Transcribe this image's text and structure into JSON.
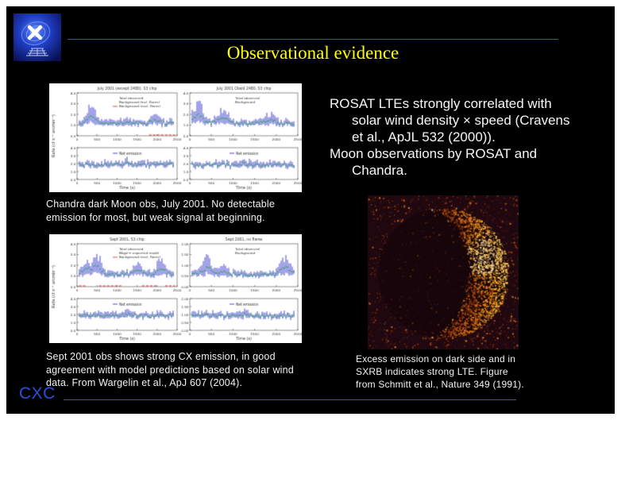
{
  "header": {
    "title": "Observational evidence"
  },
  "footer": {
    "label": "CXC"
  },
  "colors": {
    "title_yellow": "#ffff00",
    "footer_blue": "#2b50dc",
    "rule_blue": "#3a5a8c",
    "slide_background": "#000000",
    "plot_blue": "#1616c8",
    "plot_green": "#14a03a",
    "flare_red": "#e01818",
    "moon_crescent": "#ffb030",
    "moon_background": "#200810"
  },
  "logo": {
    "name": "chandra-xray-center-logo"
  },
  "right_text": {
    "lines": [
      "ROSAT LTEs strongly correlated with",
      "solar wind density × speed (Cravens",
      "et al., ApJL 532 (2000)).",
      "Moon observations by ROSAT and",
      "Chandra."
    ]
  },
  "plots": {
    "ylabel": "Rate (ct s⁻¹ arcmin⁻²)",
    "xlabel": "Time (s)",
    "x_ticks": [
      "0",
      "500",
      "1000",
      "1500",
      "2000",
      "2500"
    ],
    "net_label": "Net emission",
    "plot1": {
      "caption": "Chandra dark Moon obs, July 2001.  No detectable\nemission for most, but weak signal at beginning.",
      "panels": [
        {
          "title": "July 2001 (except 2480): S3 chip",
          "legend": [
            "Total observed",
            "Background (incl. flares)",
            "Background (excl. flares)"
          ],
          "y_ticks": [
            "4.0",
            "3.0",
            "2.0",
            "1.0",
            "0.0"
          ]
        },
        {
          "title": "July 2001 ObsId 2480, S3 chip",
          "legend": [
            "Total observed",
            "Background"
          ],
          "y_ticks": [
            "4.0",
            "3.0",
            "2.0",
            "1.0",
            "0.0"
          ]
        }
      ]
    },
    "plot2": {
      "caption": "Sept 2001 obs shows strong CX emission, in good\nagreement with model predictions based on solar wind\ndata.  From Wargelin et al., ApJ 607 (2004).",
      "panels": [
        {
          "title": "Sept 2001, S3 chip",
          "legend": [
            "Total observed",
            "Bkgd + expected model",
            "Background (excl. flares)"
          ],
          "y_ticks": [
            "4.0",
            "3.0",
            "2.0",
            "1.0",
            "0.0"
          ]
        },
        {
          "title": "Sept 2001, no flares",
          "legend": [
            "Total observed",
            "Background"
          ],
          "y_ticks": [
            "2.00",
            "1.50",
            "1.00",
            "0.50",
            "0.00"
          ]
        }
      ]
    }
  },
  "moon": {
    "caption": "Excess emission on dark side and in\nSXRB indicates strong LTE.  Figure\nfrom Schmitt et al., Nature 349 (1991)."
  }
}
